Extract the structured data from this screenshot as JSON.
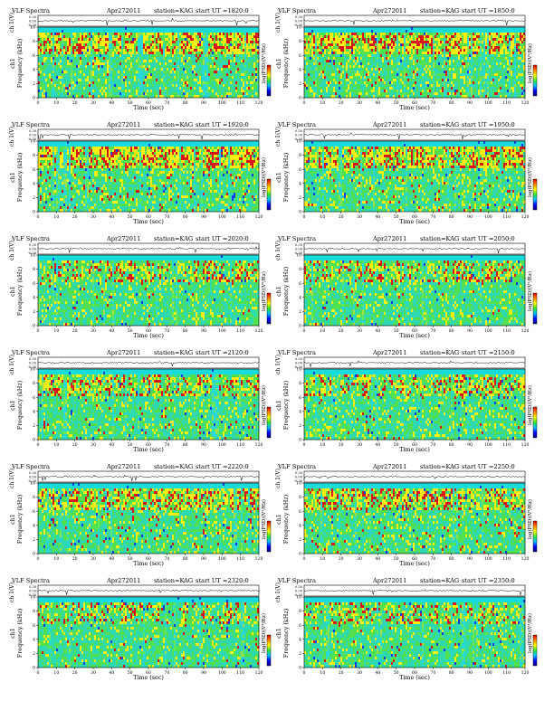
{
  "shared": {
    "title": "VLF Spectra",
    "date": "Apr272011",
    "station": "station=KAG",
    "ch_label": "ch 1(V)",
    "ch_ticks": [
      "0.30",
      "0.00",
      "-0.30"
    ],
    "ylabel_top": "ch1",
    "ylabel": "Frequency (kHz)",
    "xlabel": "Time (sec)",
    "yticks": [
      "0",
      "2",
      "4",
      "6",
      "8",
      "10"
    ],
    "xticks": [
      "0",
      "10",
      "20",
      "30",
      "40",
      "50",
      "60",
      "70",
      "80",
      "90",
      "100",
      "110",
      "120"
    ],
    "colorbar_label": "log(PSD)(V²/Hz)",
    "colorbar_stops": [
      "#00007f",
      "#0000ff",
      "#00bfff",
      "#33e533",
      "#ffff00",
      "#ff8000",
      "#cc0000"
    ]
  },
  "chart_data": [
    {
      "type": "heatmap",
      "title": "VLF Spectra",
      "date": "Apr272011",
      "station": "station=KAG",
      "ut": "start  UT  =1820:0",
      "xlabel": "Time (sec)",
      "ylabel": "Frequency (kHz)",
      "xlim": [
        0,
        120
      ],
      "ylim": [
        0,
        10
      ],
      "intensity": 0.85
    },
    {
      "type": "heatmap",
      "title": "VLF Spectra",
      "date": "Apr272011",
      "station": "station=KAG",
      "ut": "start  UT  =1850:0",
      "xlabel": "Time (sec)",
      "ylabel": "Frequency (kHz)",
      "xlim": [
        0,
        120
      ],
      "ylim": [
        0,
        10
      ],
      "intensity": 0.85
    },
    {
      "type": "heatmap",
      "title": "VLF Spectra",
      "date": "Apr272011",
      "station": "station=KAG",
      "ut": "start  UT  =1920:0",
      "xlabel": "Time (sec)",
      "ylabel": "Frequency (kHz)",
      "xlim": [
        0,
        120
      ],
      "ylim": [
        0,
        10
      ],
      "intensity": 0.9
    },
    {
      "type": "heatmap",
      "title": "VLF Spectra",
      "date": "Apr272011",
      "station": "station=KAG",
      "ut": "start  UT  =1950:0",
      "xlabel": "Time (sec)",
      "ylabel": "Frequency (kHz)",
      "xlim": [
        0,
        120
      ],
      "ylim": [
        0,
        10
      ],
      "intensity": 0.75
    },
    {
      "type": "heatmap",
      "title": "VLF Spectra",
      "date": "Apr272011",
      "station": "station=KAG",
      "ut": "start  UT  =2020:0",
      "xlabel": "Time (sec)",
      "ylabel": "Frequency (kHz)",
      "xlim": [
        0,
        120
      ],
      "ylim": [
        0,
        10
      ],
      "intensity": 0.45
    },
    {
      "type": "heatmap",
      "title": "VLF Spectra",
      "date": "Apr272011",
      "station": "station=KAG",
      "ut": "start  UT  =2050:0",
      "xlabel": "Time (sec)",
      "ylabel": "Frequency (kHz)",
      "xlim": [
        0,
        120
      ],
      "ylim": [
        0,
        10
      ],
      "intensity": 0.45
    },
    {
      "type": "heatmap",
      "title": "VLF Spectra",
      "date": "Apr272011",
      "station": "station=KAG",
      "ut": "start  UT  =2120:0",
      "xlabel": "Time (sec)",
      "ylabel": "Frequency (kHz)",
      "xlim": [
        0,
        120
      ],
      "ylim": [
        0,
        10
      ],
      "intensity": 0.55
    },
    {
      "type": "heatmap",
      "title": "VLF Spectra",
      "date": "Apr272011",
      "station": "station=KAG",
      "ut": "start  UT  =2150:0",
      "xlabel": "Time (sec)",
      "ylabel": "Frequency (kHz)",
      "xlim": [
        0,
        120
      ],
      "ylim": [
        0,
        10
      ],
      "intensity": 0.5
    },
    {
      "type": "heatmap",
      "title": "VLF Spectra",
      "date": "Apr272011",
      "station": "station=KAG",
      "ut": "start  UT  =2220:0",
      "xlabel": "Time (sec)",
      "ylabel": "Frequency (kHz)",
      "xlim": [
        0,
        120
      ],
      "ylim": [
        0,
        10
      ],
      "intensity": 0.65
    },
    {
      "type": "heatmap",
      "title": "VLF Spectra",
      "date": "Apr272011",
      "station": "station=KAG",
      "ut": "start  UT  =2250:0",
      "xlabel": "Time (sec)",
      "ylabel": "Frequency (kHz)",
      "xlim": [
        0,
        120
      ],
      "ylim": [
        0,
        10
      ],
      "intensity": 0.65
    },
    {
      "type": "heatmap",
      "title": "VLF Spectra",
      "date": "Apr272011",
      "station": "station=KAG",
      "ut": "start  UT  =2320:0",
      "xlabel": "Time (sec)",
      "ylabel": "Frequency (kHz)",
      "xlim": [
        0,
        120
      ],
      "ylim": [
        0,
        10
      ],
      "intensity": 0.35
    },
    {
      "type": "heatmap",
      "title": "VLF Spectra",
      "date": "Apr272011",
      "station": "station=KAG",
      "ut": "start  UT  =2350:0",
      "xlabel": "Time (sec)",
      "ylabel": "Frequency (kHz)",
      "xlim": [
        0,
        120
      ],
      "ylim": [
        0,
        10
      ],
      "intensity": 0.4
    }
  ]
}
